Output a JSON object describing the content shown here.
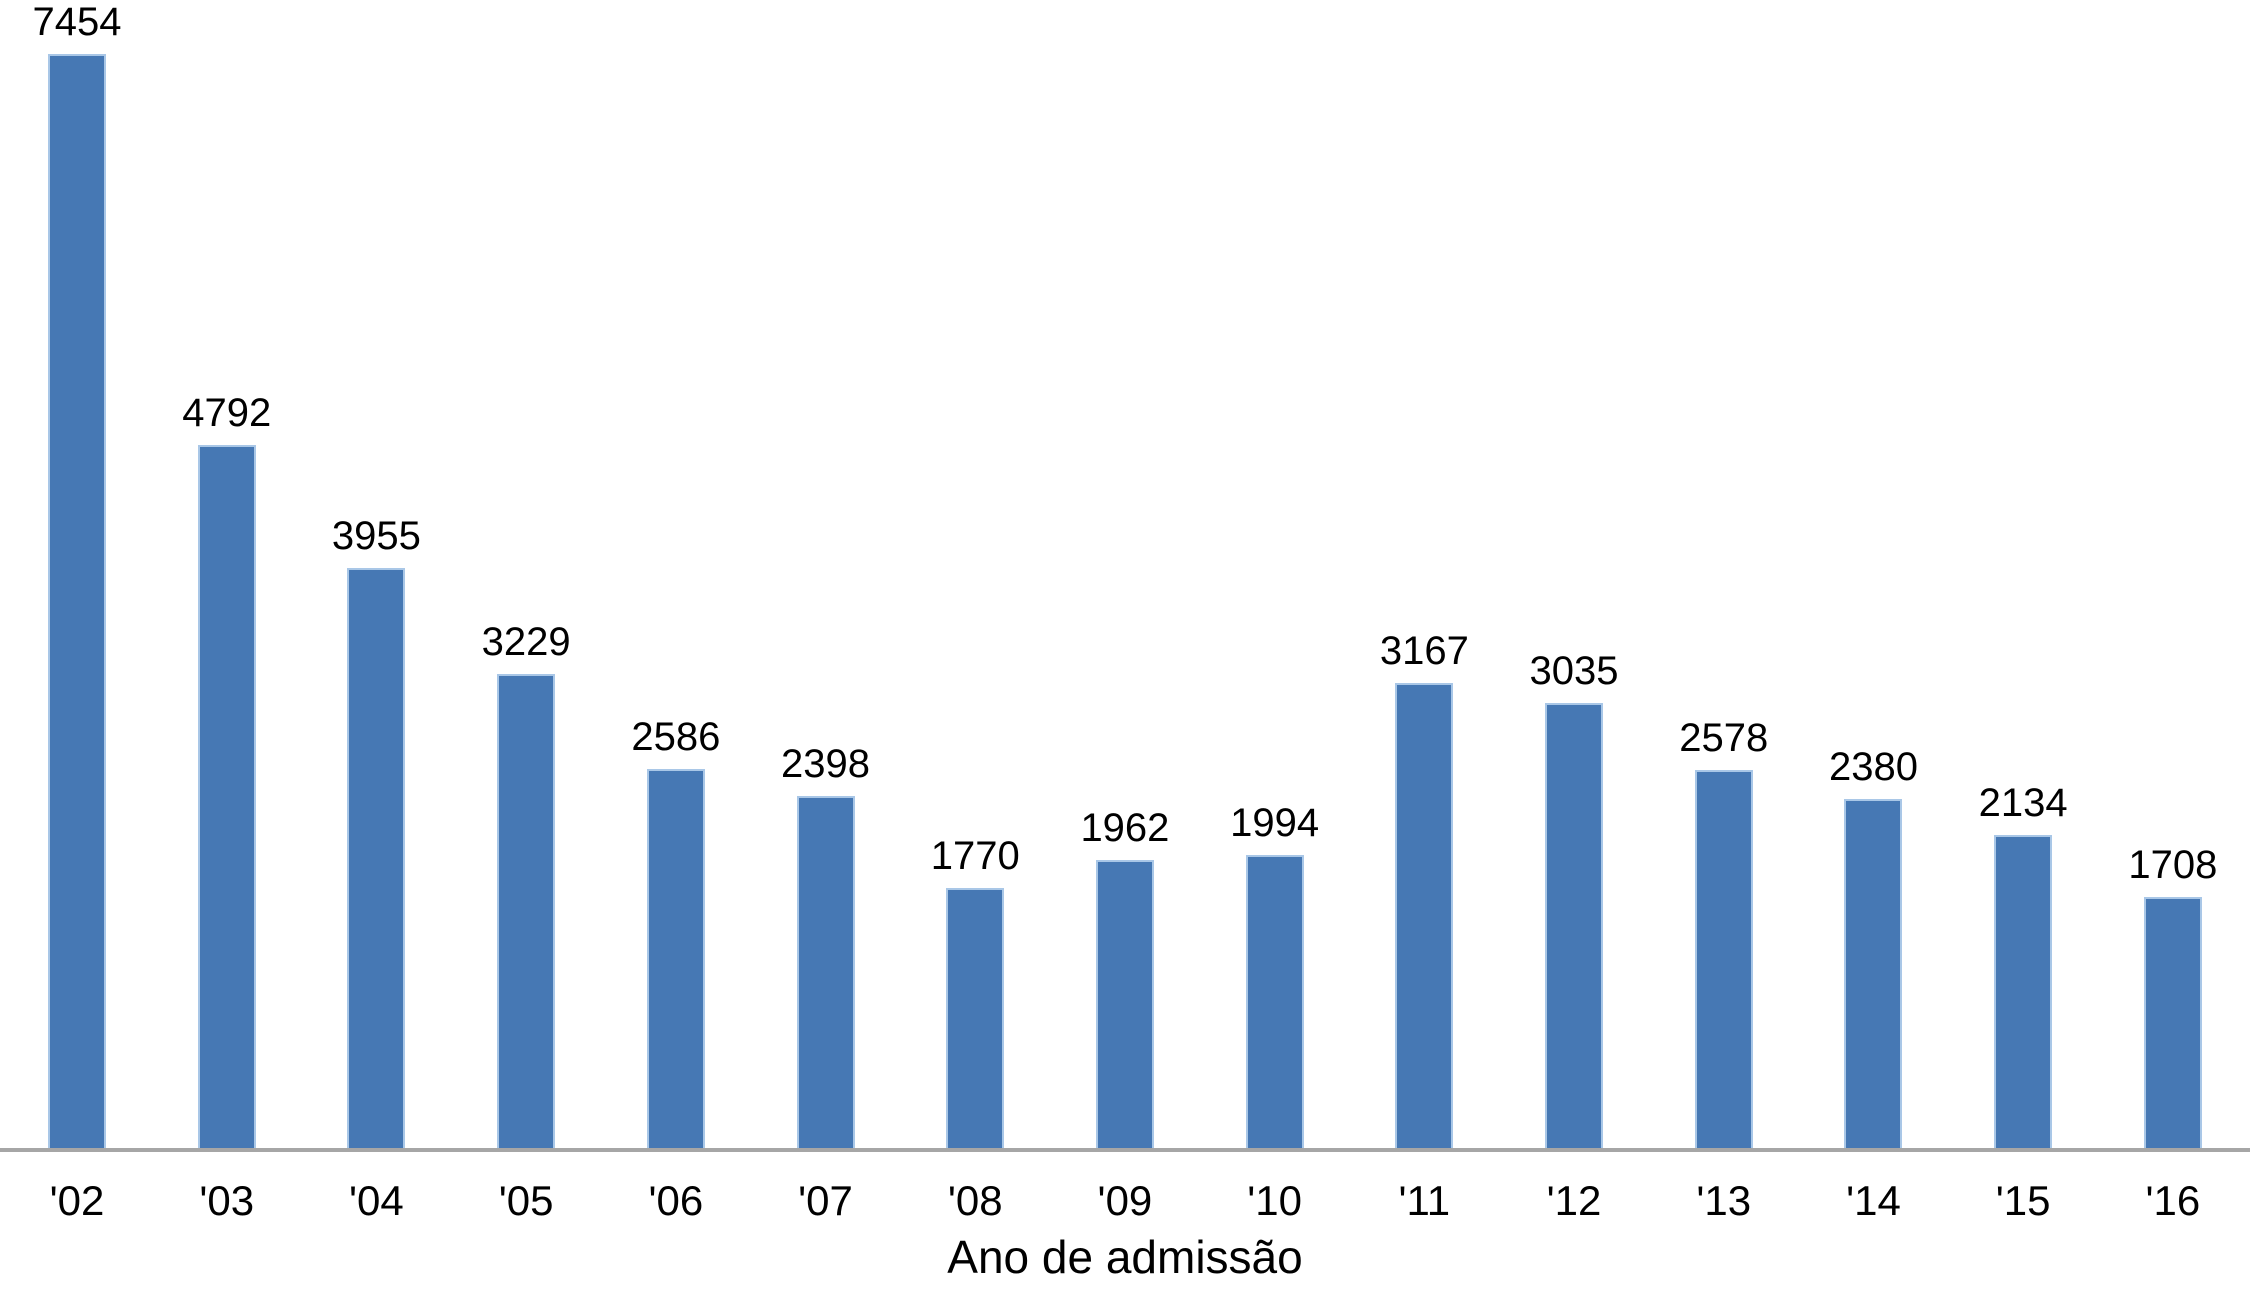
{
  "chart_data": {
    "type": "bar",
    "categories": [
      "'02",
      "'03",
      "'04",
      "'05",
      "'06",
      "'07",
      "'08",
      "'09",
      "'10",
      "'11",
      "'12",
      "'13",
      "'14",
      "'15",
      "'16"
    ],
    "values": [
      7454,
      4792,
      3955,
      3229,
      2586,
      2398,
      1770,
      1962,
      1994,
      3167,
      3035,
      2578,
      2380,
      2134,
      1708
    ],
    "title": "",
    "xlabel": "Ano de admissão",
    "ylabel": "",
    "ylim": [
      0,
      7454
    ],
    "data_labels": true,
    "grid": false,
    "legend": false,
    "bar_color": "#4678B4",
    "bar_edge_color": "#A9C7E7",
    "axis_line_color": "#A6A6A6",
    "label_color": "#000000"
  }
}
